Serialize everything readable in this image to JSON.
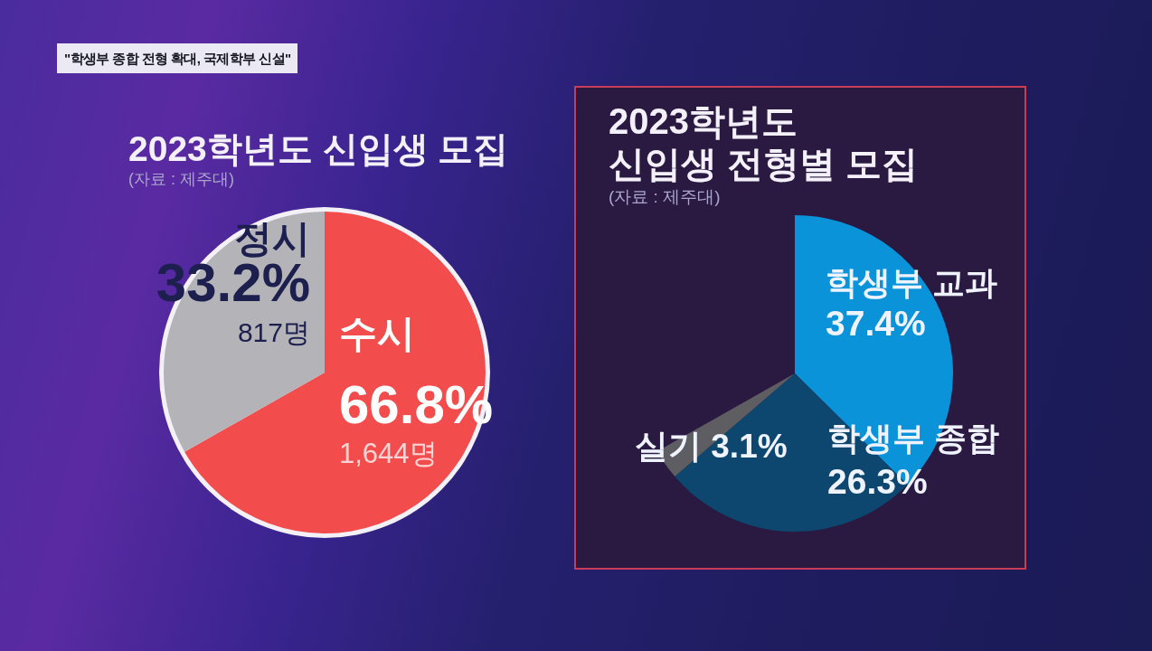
{
  "chart_data": [
    {
      "type": "pie",
      "title": "2023학년도 신입생 모집",
      "subtitle": "(자료 : 제주대)",
      "categories": [
        "수시",
        "정시"
      ],
      "values": [
        66.8,
        33.2
      ],
      "colors": [
        "#f24c4c",
        "#b4b4b8"
      ],
      "value_labels": [
        "66.8%",
        "33.2%"
      ],
      "annotations": [
        "\"학생부 종합 전형 확대, 국제학부 신설\"",
        {
          "text": "1,644명",
          "x": "수시"
        },
        {
          "text": "817명",
          "x": "정시"
        }
      ]
    },
    {
      "type": "pie",
      "title": "2023학년도\n신입생 전형별 모집",
      "subtitle": "(자료 : 제주대)",
      "categories": [
        "학생부 교과",
        "학생부 종합",
        "실기"
      ],
      "values": [
        37.4,
        26.3,
        3.1
      ],
      "colors": [
        "#0b93da",
        "#0d466e",
        "#5e5e62"
      ],
      "value_labels": [
        "37.4%",
        "26.3%",
        "3.1%"
      ]
    }
  ]
}
